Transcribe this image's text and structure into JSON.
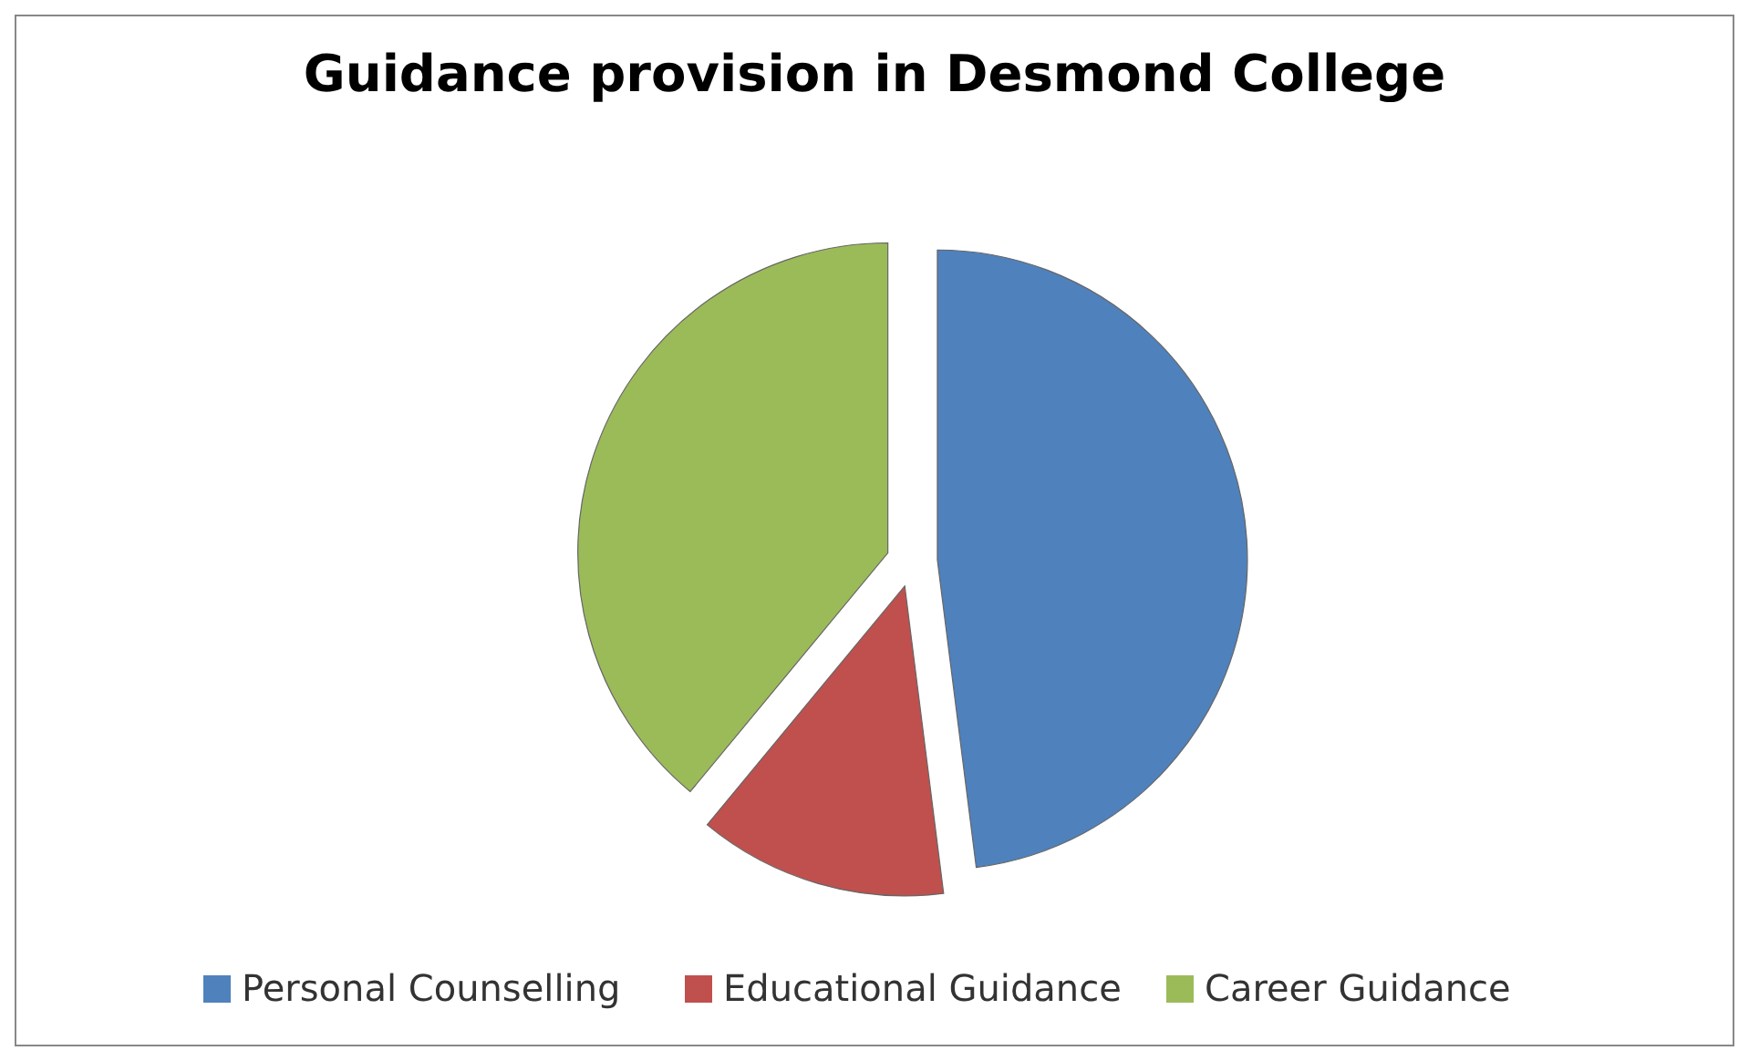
{
  "chart_data": {
    "type": "pie",
    "title": "Guidance provision in Desmond College",
    "categories": [
      "Personal Counselling",
      "Educational Guidance",
      "Career Guidance"
    ],
    "values": [
      48,
      13,
      39
    ],
    "colors": [
      "#4f81bd",
      "#c0504d",
      "#9bbb59"
    ],
    "legend": "bottom"
  }
}
